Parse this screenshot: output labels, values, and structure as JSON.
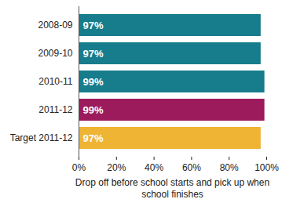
{
  "chart_data": {
    "type": "bar",
    "orientation": "horizontal",
    "categories": [
      "2008-09",
      "2009-10",
      "2010-11",
      "2011-12",
      "Target 2011-12"
    ],
    "values": [
      97,
      97,
      99,
      99,
      97
    ],
    "value_labels": [
      "97%",
      "97%",
      "99%",
      "99%",
      "97%"
    ],
    "data_labels": true,
    "colors": [
      "#177c8c",
      "#177c8c",
      "#177c8c",
      "#9b1b5d",
      "#efb434"
    ],
    "xlabel": "Drop off before school starts and pick up when school finishes",
    "xlim": [
      0,
      100
    ],
    "xticks": [
      {
        "value": 0,
        "label": "0%"
      },
      {
        "value": 20,
        "label": "20%"
      },
      {
        "value": 40,
        "label": "40%"
      },
      {
        "value": 60,
        "label": "60%"
      },
      {
        "value": 80,
        "label": "80%"
      },
      {
        "value": 100,
        "label": "100%"
      }
    ],
    "grid": false
  }
}
